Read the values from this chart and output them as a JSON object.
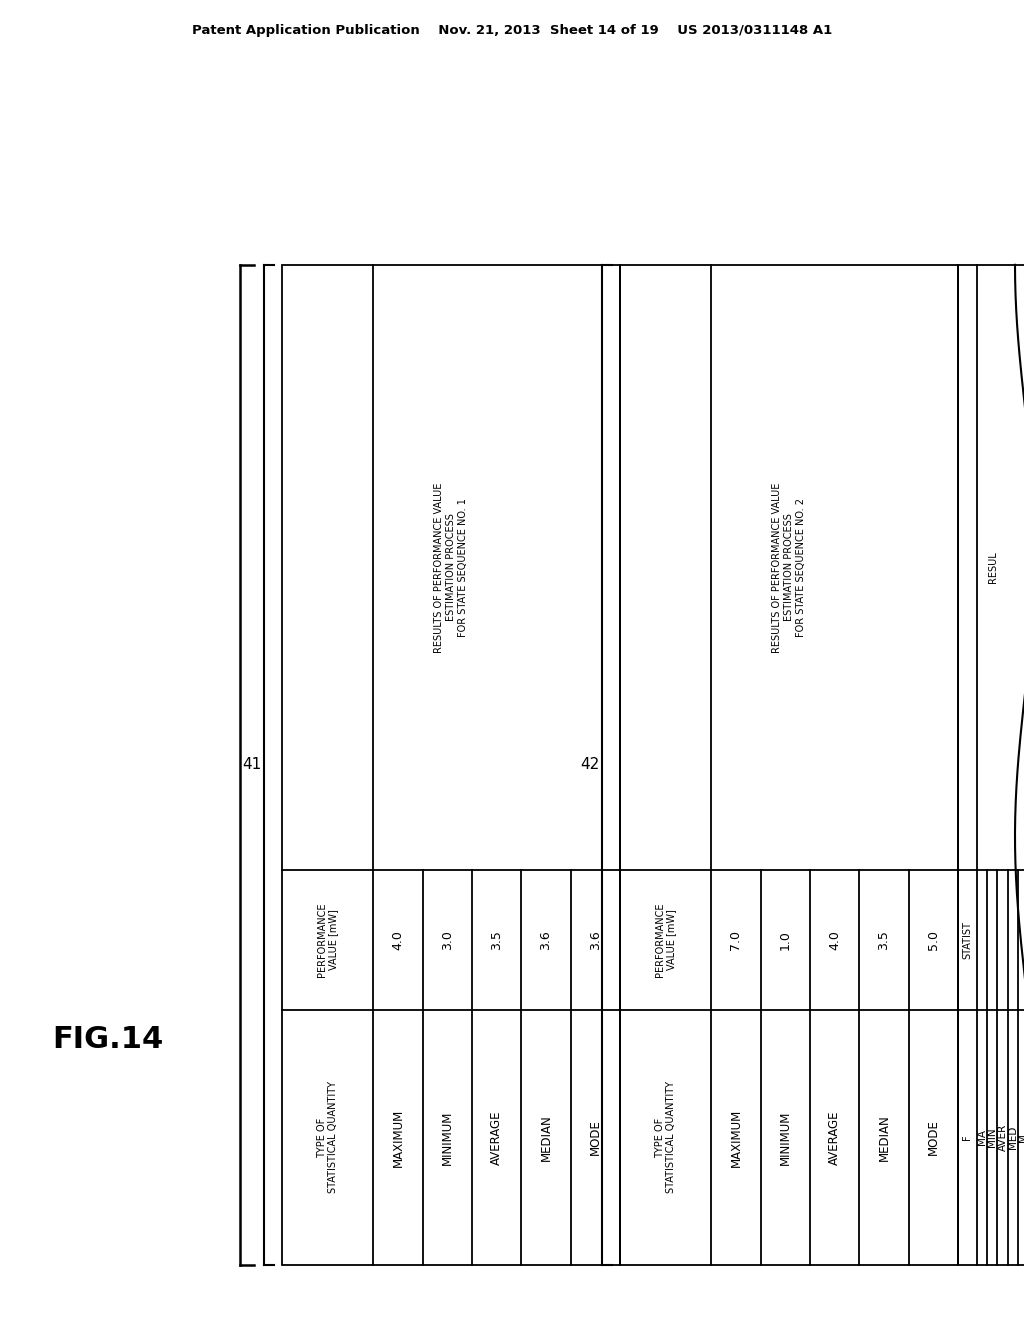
{
  "fig_label": "FIG.14",
  "header_text": "Patent Application Publication    Nov. 21, 2013  Sheet 14 of 19    US 2013/0311148 A1",
  "table1_label": "41",
  "table2_label": "42",
  "table1_title": "RESULTS OF PERFORMANCE VALUE\nESTIMATION PROCESS\nFOR STATE SEQUENCE NO. 1",
  "table2_title": "RESULTS OF PERFORMANCE VALUE\nESTIMATION PROCESS\nFOR STATE SEQUENCE NO. 2",
  "col1_header": "TYPE OF\nSTATISTICAL QUANTITY",
  "col2_header": "PERFORMANCE\nVALUE [mW]",
  "rows": [
    "MAXIMUM",
    "MINIMUM",
    "AVERAGE",
    "MEDIAN",
    "MODE"
  ],
  "table1_values": [
    "4.0",
    "3.0",
    "3.5",
    "3.6",
    "3.6"
  ],
  "table2_values": [
    "7.0",
    "1.0",
    "4.0",
    "3.5",
    "5.0"
  ],
  "partial_title": "RESUL",
  "partial_sub_f": "F",
  "partial_statist": "STATIST",
  "partial_rows": [
    "MA",
    "MIN",
    "AVER",
    "MED",
    "M"
  ],
  "bg_color": "white",
  "line_color": "black",
  "text_color": "black",
  "lw": 1.3,
  "header_fontsize": 9.5,
  "fig_fontsize": 22,
  "title_fontsize": 7.0,
  "cell_fontsize": 8.5,
  "value_fontsize": 9.0,
  "bracket_fontsize": 11
}
